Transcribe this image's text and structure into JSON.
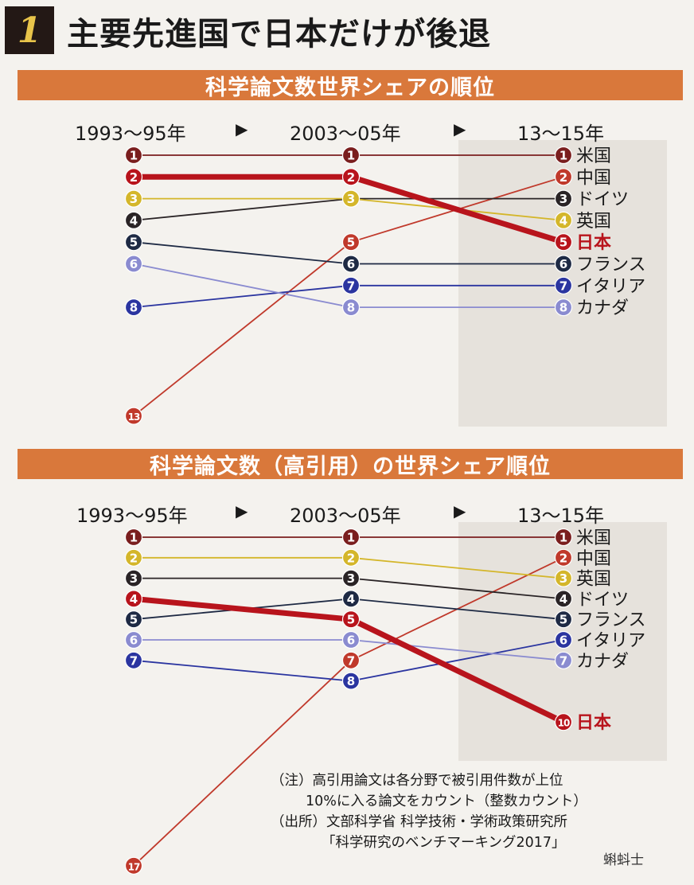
{
  "header": {
    "number": "1",
    "title": "主要先進国で日本だけが後退"
  },
  "colors": {
    "米国": "#7a1e1e",
    "中国": "#c0392b",
    "ドイツ": "#2a2426",
    "英国": "#d4b62a",
    "日本": "#b8141c",
    "フランス": "#1e2a44",
    "イタリア": "#2b35a0",
    "カナダ": "#8a8bd0"
  },
  "chart_data": [
    {
      "type": "line",
      "title": "科学論文数世界シェアの順位",
      "x": [
        "1993～95年",
        "2003～05年",
        "13～15年"
      ],
      "arrow": "▶",
      "y_scale": "rank (1 = top)",
      "series": [
        {
          "name": "米国",
          "values": [
            1,
            1,
            1
          ]
        },
        {
          "name": "中国",
          "values": [
            13,
            5,
            2
          ]
        },
        {
          "name": "ドイツ",
          "values": [
            4,
            3,
            3
          ]
        },
        {
          "name": "英国",
          "values": [
            3,
            3,
            4
          ]
        },
        {
          "name": "日本",
          "values": [
            2,
            2,
            5
          ],
          "highlight": true
        },
        {
          "name": "フランス",
          "values": [
            5,
            6,
            6
          ]
        },
        {
          "name": "イタリア",
          "values": [
            8,
            7,
            7
          ]
        },
        {
          "name": "カナダ",
          "values": [
            6,
            8,
            8
          ]
        }
      ]
    },
    {
      "type": "line",
      "title": "科学論文数（高引用）の世界シェア順位",
      "x": [
        "1993～95年",
        "2003～05年",
        "13～15年"
      ],
      "arrow": "▶",
      "y_scale": "rank (1 = top)",
      "series": [
        {
          "name": "米国",
          "values": [
            1,
            1,
            1
          ]
        },
        {
          "name": "中国",
          "values": [
            17,
            7,
            2
          ]
        },
        {
          "name": "英国",
          "values": [
            2,
            2,
            3
          ]
        },
        {
          "name": "ドイツ",
          "values": [
            3,
            3,
            4
          ]
        },
        {
          "name": "フランス",
          "values": [
            5,
            4,
            5
          ]
        },
        {
          "name": "イタリア",
          "values": [
            7,
            8,
            6
          ]
        },
        {
          "name": "カナダ",
          "values": [
            6,
            6,
            7
          ]
        },
        {
          "name": "日本",
          "values": [
            4,
            5,
            10
          ],
          "highlight": true
        }
      ]
    }
  ],
  "notes": [
    "（注）高引用論文は各分野で被引用件数が上位",
    "10%に入る論文をカウント（整数カウント）",
    "（出所）文部科学省 科学技術・学術政策研究所",
    "「科学研究のベンチマーキング2017」"
  ],
  "watermark": "蝌蚪士"
}
